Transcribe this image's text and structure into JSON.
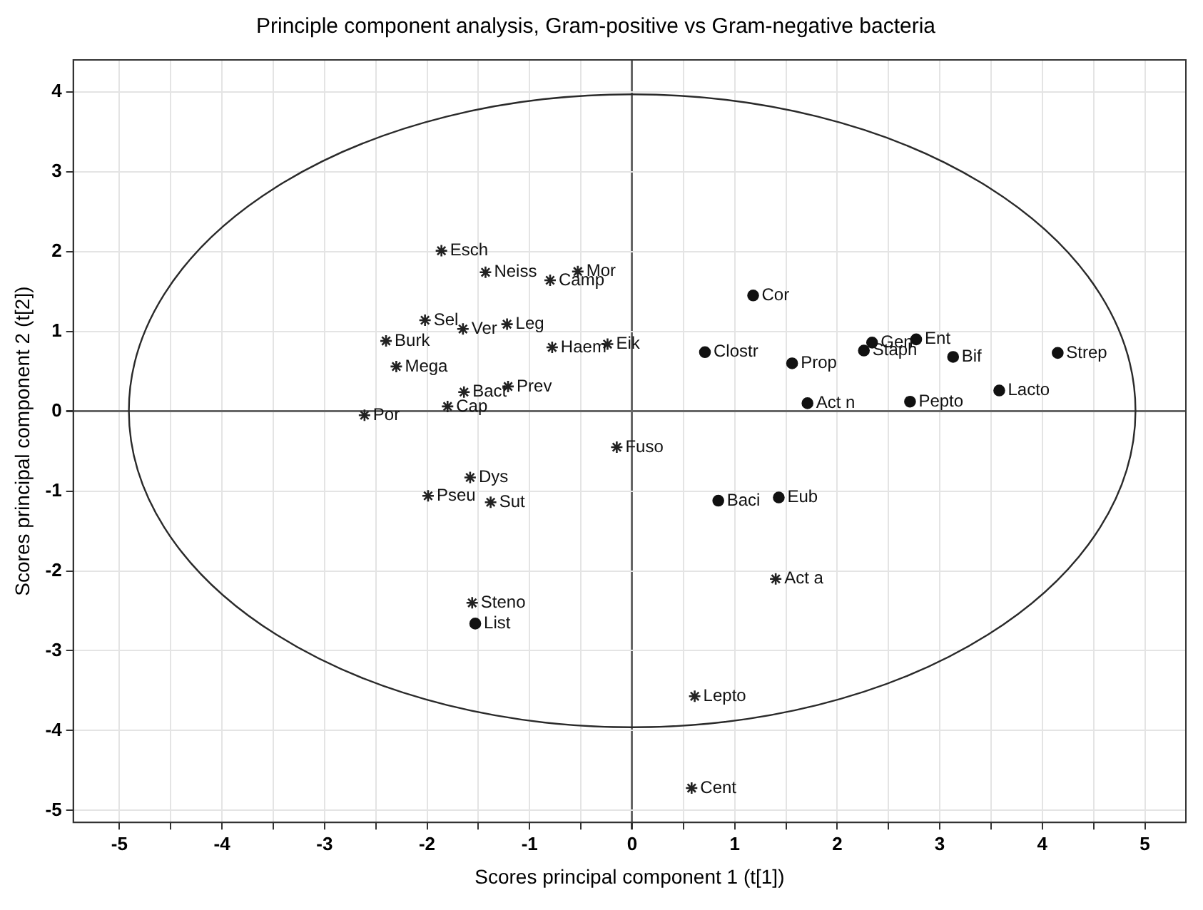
{
  "chart_data": {
    "type": "scatter",
    "title": "Principle component analysis, Gram-positive vs Gram-negative bacteria",
    "xlabel": "Scores principal component 1 (t[1])",
    "ylabel": "Scores principal component 2 (t[2])",
    "xlim": [
      -5.45,
      5.4
    ],
    "ylim": [
      -5.15,
      4.4
    ],
    "xticks": [
      -5,
      {
        "value": -4.5,
        "label": null
      },
      -4,
      {
        "value": -3.5,
        "label": null
      },
      -3,
      {
        "value": -2.5,
        "label": null
      },
      -2,
      {
        "value": -1.5,
        "label": null
      },
      -1,
      {
        "value": -0.5,
        "label": null
      },
      0,
      {
        "value": 0.5,
        "label": null
      },
      1,
      {
        "value": 1.5,
        "label": null
      },
      2,
      {
        "value": 2.5,
        "label": null
      },
      3,
      {
        "value": 3.5,
        "label": null
      },
      4,
      {
        "value": 4.5,
        "label": null
      },
      5
    ],
    "yticks": [
      -5,
      -4,
      -3,
      -2,
      -1,
      0,
      1,
      2,
      3,
      4
    ],
    "grid": true,
    "legend": false,
    "series": [
      {
        "type": "scatter",
        "marker": "cross",
        "color": "#222222",
        "x": [
          -1.86,
          -1.43,
          -0.53,
          -0.8,
          -2.02,
          -1.65,
          -1.22,
          -2.4,
          -0.78,
          -0.24,
          -2.3,
          -1.64,
          -1.21,
          -1.8,
          -2.61,
          -0.15,
          -1.58,
          -1.99,
          -1.38,
          -1.56,
          1.4,
          0.61,
          0.58
        ],
        "values": [
          2.01,
          1.74,
          1.75,
          1.64,
          1.14,
          1.03,
          1.09,
          0.88,
          0.8,
          0.84,
          0.56,
          0.24,
          0.31,
          0.06,
          -0.05,
          -0.45,
          -0.83,
          -1.06,
          -1.14,
          -2.4,
          -2.1,
          -3.57,
          -4.72
        ]
      },
      {
        "type": "scatter",
        "marker": "circle",
        "color": "#111111",
        "x": [
          -1.53,
          1.18,
          0.71,
          1.56,
          2.26,
          2.34,
          2.77,
          3.13,
          4.15,
          3.58,
          1.71,
          2.71,
          0.84,
          1.43
        ],
        "values": [
          -2.66,
          1.45,
          0.74,
          0.6,
          0.76,
          0.86,
          0.9,
          0.68,
          0.73,
          0.26,
          0.1,
          0.12,
          -1.12,
          -1.08
        ]
      }
    ],
    "annotations": [
      {
        "text": "Esch",
        "x": -1.86,
        "y": 2.01
      },
      {
        "text": "Neiss",
        "x": -1.43,
        "y": 1.74
      },
      {
        "text": "Mor",
        "x": -0.53,
        "y": 1.75
      },
      {
        "text": "Camp",
        "x": -0.8,
        "y": 1.64
      },
      {
        "text": "Sel",
        "x": -2.02,
        "y": 1.14
      },
      {
        "text": "Ver",
        "x": -1.65,
        "y": 1.03
      },
      {
        "text": "Leg",
        "x": -1.22,
        "y": 1.09
      },
      {
        "text": "Burk",
        "x": -2.4,
        "y": 0.88
      },
      {
        "text": "Haem",
        "x": -0.78,
        "y": 0.8
      },
      {
        "text": "Eik",
        "x": -0.24,
        "y": 0.84
      },
      {
        "text": "Mega",
        "x": -2.3,
        "y": 0.56
      },
      {
        "text": "Bact",
        "x": -1.64,
        "y": 0.24
      },
      {
        "text": "Prev",
        "x": -1.21,
        "y": 0.31
      },
      {
        "text": "Cap",
        "x": -1.8,
        "y": 0.06
      },
      {
        "text": "Por",
        "x": -2.61,
        "y": -0.05
      },
      {
        "text": "Fuso",
        "x": -0.15,
        "y": -0.45
      },
      {
        "text": "Dys",
        "x": -1.58,
        "y": -0.83
      },
      {
        "text": "Pseu",
        "x": -1.99,
        "y": -1.06
      },
      {
        "text": "Sut",
        "x": -1.38,
        "y": -1.14
      },
      {
        "text": "Steno",
        "x": -1.56,
        "y": -2.4
      },
      {
        "text": "Act a",
        "x": 1.4,
        "y": -2.1
      },
      {
        "text": "Lepto",
        "x": 0.61,
        "y": -3.57
      },
      {
        "text": "Cent",
        "x": 0.58,
        "y": -4.72
      },
      {
        "text": "List",
        "x": -1.53,
        "y": -2.66
      },
      {
        "text": "Cor",
        "x": 1.18,
        "y": 1.45
      },
      {
        "text": "Clostr",
        "x": 0.71,
        "y": 0.74
      },
      {
        "text": "Prop",
        "x": 1.56,
        "y": 0.6
      },
      {
        "text": "Staph",
        "x": 2.26,
        "y": 0.76
      },
      {
        "text": "Gen",
        "x": 2.34,
        "y": 0.86
      },
      {
        "text": "Ent",
        "x": 2.77,
        "y": 0.9
      },
      {
        "text": "Bif",
        "x": 3.13,
        "y": 0.68
      },
      {
        "text": "Strep",
        "x": 4.15,
        "y": 0.73
      },
      {
        "text": "Lacto",
        "x": 3.58,
        "y": 0.26
      },
      {
        "text": "Act n",
        "x": 1.71,
        "y": 0.1
      },
      {
        "text": "Pepto",
        "x": 2.71,
        "y": 0.12
      },
      {
        "text": "Baci",
        "x": 0.84,
        "y": -1.12
      },
      {
        "text": "Eub",
        "x": 1.43,
        "y": -1.08
      }
    ]
  }
}
